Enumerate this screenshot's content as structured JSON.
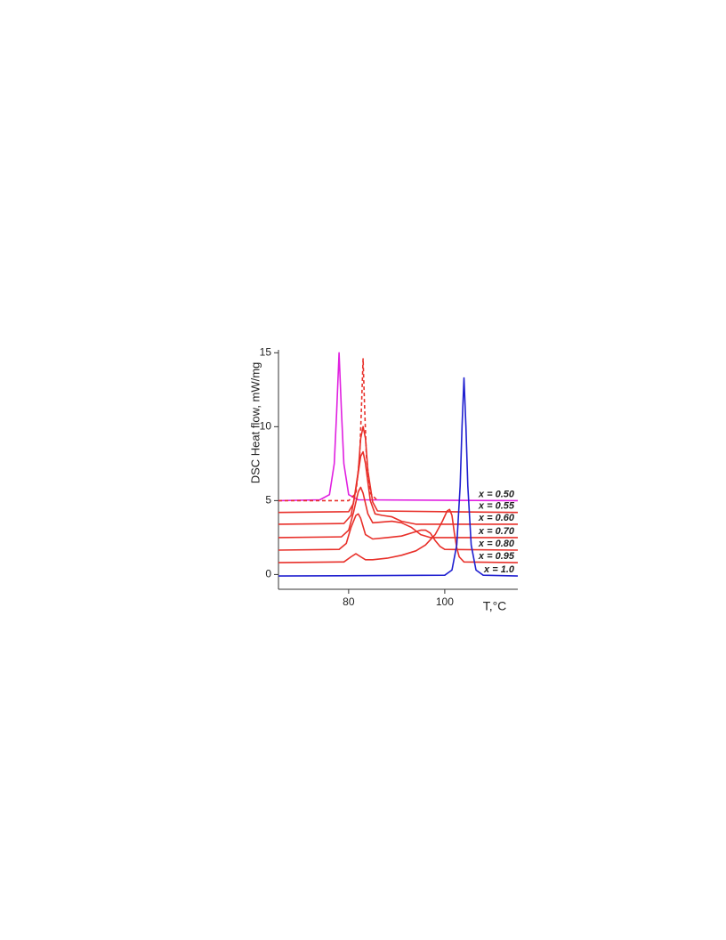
{
  "chart_data": {
    "type": "line",
    "xlabel": "T,°C",
    "ylabel": "DSC Heat flow, mW/mg",
    "xlim": [
      65.4,
      115.2
    ],
    "ylim": [
      -1,
      15.2
    ],
    "xticks": [
      80,
      100
    ],
    "yticks": [
      0,
      5,
      10,
      15
    ],
    "series": [
      {
        "name": "x = 0.50",
        "color": "#e020e0",
        "x": [
          65.4,
          74,
          76,
          77,
          77.5,
          78,
          78.5,
          79,
          80,
          82,
          115.2
        ],
        "values": [
          5.0,
          5.05,
          5.4,
          7.5,
          11,
          15,
          11,
          7.5,
          5.4,
          5.05,
          5.0
        ]
      },
      {
        "color": "#e8302a",
        "dashed": true,
        "x": [
          65.4,
          80,
          81.5,
          82.3,
          82.7,
          83,
          83.3,
          83.7,
          84.5,
          86
        ],
        "values": [
          5.0,
          5.0,
          5.5,
          8,
          11.5,
          14.6,
          11.5,
          8,
          5.5,
          5.0
        ]
      },
      {
        "name": "x = 0.55",
        "color": "#e8302a",
        "x": [
          65.4,
          80,
          81,
          82,
          82.5,
          83,
          83.5,
          84,
          85,
          86,
          115.2
        ],
        "values": [
          4.2,
          4.25,
          4.8,
          7,
          9.2,
          10,
          9.2,
          7,
          4.9,
          4.3,
          4.2
        ]
      },
      {
        "name": "x = 0.60",
        "color": "#e8302a",
        "x": [
          65.4,
          79,
          80.5,
          81.5,
          82.5,
          83,
          83.5,
          84.5,
          85.5,
          87,
          89,
          91,
          94,
          115.2
        ],
        "values": [
          3.4,
          3.45,
          4,
          5.8,
          8,
          8.3,
          7.5,
          5,
          4.1,
          4.0,
          3.9,
          3.6,
          3.4,
          3.4
        ]
      },
      {
        "name": "x = 0.70",
        "color": "#e8302a",
        "x": [
          65.4,
          78.5,
          80,
          81,
          82,
          82.5,
          83,
          84,
          85,
          87,
          89,
          91,
          93,
          95,
          97,
          115.2
        ],
        "values": [
          2.5,
          2.55,
          3,
          4.2,
          5.6,
          5.9,
          5.5,
          4.1,
          3.5,
          3.55,
          3.6,
          3.5,
          3.2,
          2.7,
          2.5,
          2.5
        ]
      },
      {
        "name": "x = 0.80",
        "color": "#e8302a",
        "x": [
          65.4,
          78,
          79.5,
          80.5,
          81.5,
          82,
          82.5,
          83.5,
          85,
          88,
          91,
          93,
          95,
          96,
          97,
          98,
          99,
          100,
          115.2
        ],
        "values": [
          1.65,
          1.7,
          2.1,
          3.2,
          4.0,
          4.1,
          3.8,
          2.7,
          2.4,
          2.5,
          2.6,
          2.8,
          3.0,
          3.0,
          2.8,
          2.3,
          1.9,
          1.7,
          1.65
        ]
      },
      {
        "name": "x = 0.95",
        "color": "#e8302a",
        "x": [
          65.4,
          79,
          80.5,
          81.5,
          82.5,
          83.5,
          85,
          88,
          91,
          94,
          96,
          98,
          99.5,
          100.5,
          101,
          101.5,
          102,
          102.5,
          103,
          104,
          115.2
        ],
        "values": [
          0.8,
          0.85,
          1.2,
          1.4,
          1.2,
          1.0,
          1.0,
          1.1,
          1.3,
          1.6,
          2.0,
          2.7,
          3.6,
          4.3,
          4.4,
          4.0,
          2.8,
          1.8,
          1.2,
          0.85,
          0.8
        ]
      },
      {
        "name": "x = 1.0",
        "color": "#2020d0",
        "x": [
          65.4,
          100,
          101.5,
          102.5,
          103.2,
          103.6,
          104,
          104.4,
          104.8,
          105.5,
          106.5,
          108,
          115.2
        ],
        "values": [
          -0.1,
          -0.05,
          0.3,
          2,
          6,
          10,
          13.3,
          10,
          6,
          2,
          0.3,
          -0.05,
          -0.1
        ]
      }
    ]
  }
}
